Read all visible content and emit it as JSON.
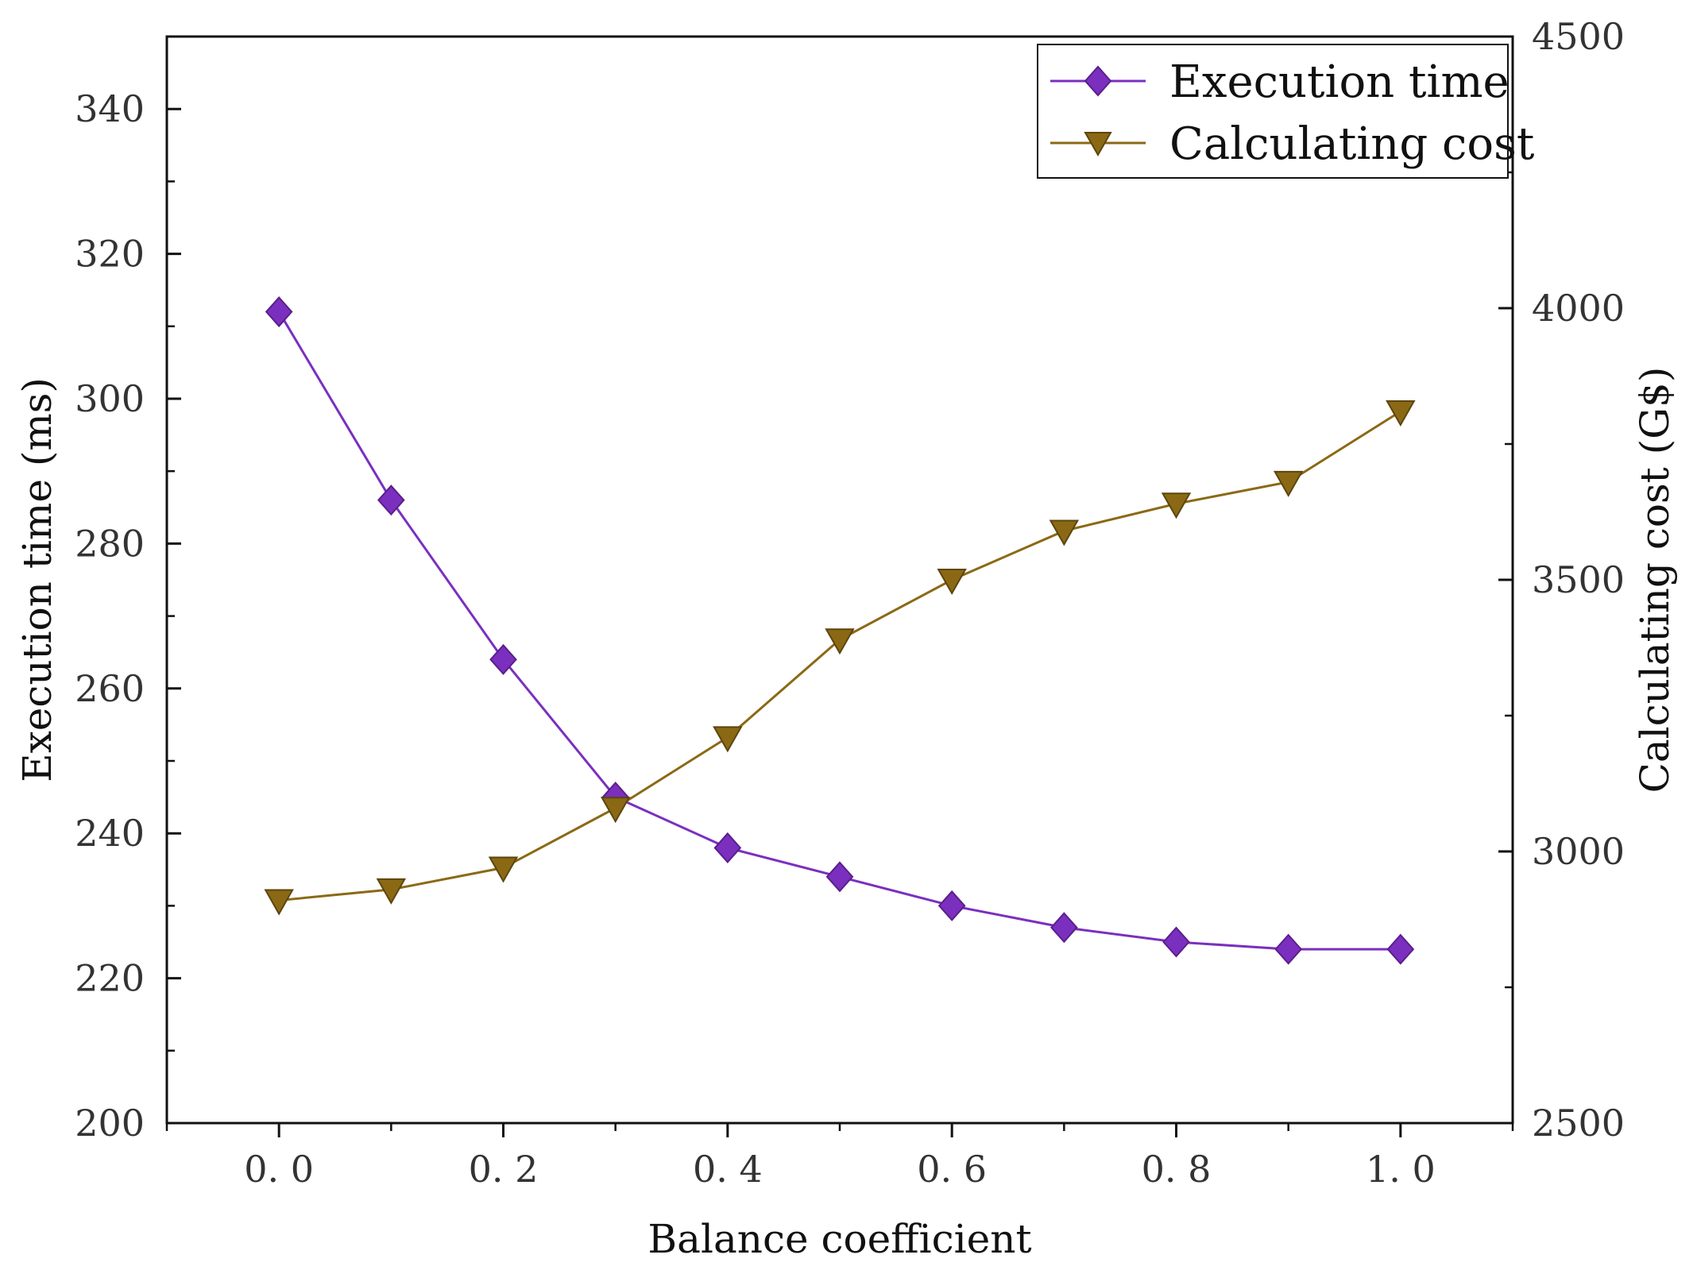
{
  "chart_data": {
    "type": "line",
    "title": "",
    "xlabel": "Balance coefficient",
    "ylabel_left": "Execution time (ms)",
    "ylabel_right": "Calculating cost (G$)",
    "x": [
      0.0,
      0.1,
      0.2,
      0.3,
      0.4,
      0.5,
      0.6,
      0.7,
      0.8,
      0.9,
      1.0
    ],
    "xlim": [
      -0.1,
      1.1
    ],
    "x_ticks": [
      0.0,
      0.2,
      0.4,
      0.6,
      0.8,
      1.0
    ],
    "x_tick_labels": [
      "0. 0",
      "0. 2",
      "0. 4",
      "0. 6",
      "0. 8",
      "1. 0"
    ],
    "ylim_left": [
      200,
      350
    ],
    "y_ticks_left": [
      200,
      220,
      240,
      260,
      280,
      300,
      320,
      340
    ],
    "y_tick_labels_left": [
      "200",
      "220",
      "240",
      "260",
      "280",
      "300",
      "320",
      "340"
    ],
    "ylim_right": [
      2500,
      4500
    ],
    "y_ticks_right": [
      2500,
      3000,
      3500,
      4000,
      4500
    ],
    "y_tick_labels_right": [
      "2500",
      "3000",
      "3500",
      "4000",
      "4500"
    ],
    "legend_position": "top-right",
    "series": [
      {
        "name": "Execution time",
        "axis": "left",
        "marker": "diamond",
        "color": "#7B2FBE",
        "values": [
          312,
          286,
          264,
          245,
          238,
          234,
          230,
          227,
          225,
          224,
          224
        ]
      },
      {
        "name": "Calculating cost",
        "axis": "right",
        "marker": "triangle-down",
        "color": "#8B6914",
        "values": [
          2910,
          2930,
          2970,
          3080,
          3210,
          3390,
          3500,
          3590,
          3640,
          3680,
          3810
        ]
      }
    ]
  }
}
